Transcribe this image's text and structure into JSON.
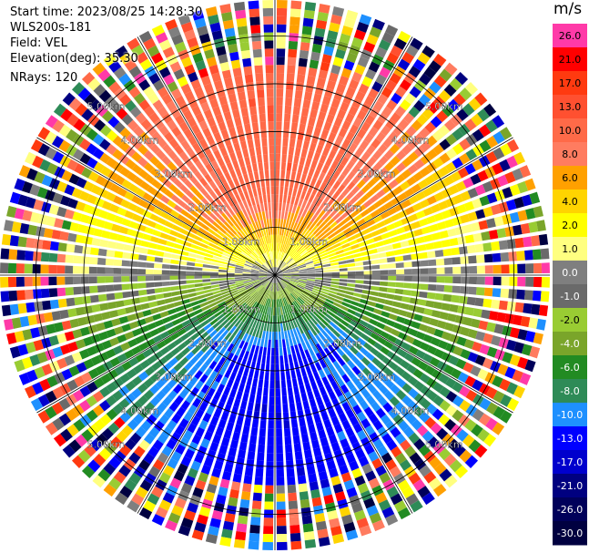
{
  "info": {
    "start_time": "Start time: 2023/08/25 14:28:30",
    "instrument": "WLS200s-181",
    "field": "Field: VEL",
    "elevation": "Elevation(deg): 35.30",
    "nrays": "NRays: 120"
  },
  "colorbar": {
    "unit": "m/s",
    "levels": [
      {
        "label": "26.0",
        "color": "#ff3aa8"
      },
      {
        "label": "21.0",
        "color": "#ff0000"
      },
      {
        "label": "17.0",
        "color": "#ff3a10"
      },
      {
        "label": "13.0",
        "color": "#ff5030"
      },
      {
        "label": "10.0",
        "color": "#ff6a48"
      },
      {
        "label": "8.0",
        "color": "#ff7c60"
      },
      {
        "label": "6.0",
        "color": "#ffa000"
      },
      {
        "label": "4.0",
        "color": "#ffd400"
      },
      {
        "label": "2.0",
        "color": "#ffff00"
      },
      {
        "label": "1.0",
        "color": "#ffff80"
      },
      {
        "label": "0.0",
        "color": "#7f7f7f"
      },
      {
        "label": "-1.0",
        "color": "#6a6a6a"
      },
      {
        "label": "-2.0",
        "color": "#99cc33"
      },
      {
        "label": "-4.0",
        "color": "#7aa52a"
      },
      {
        "label": "-6.0",
        "color": "#228b22"
      },
      {
        "label": "-8.0",
        "color": "#2e8b57"
      },
      {
        "label": "-10.0",
        "color": "#1e90ff"
      },
      {
        "label": "-13.0",
        "color": "#0000ff"
      },
      {
        "label": "-17.0",
        "color": "#0000cd"
      },
      {
        "label": "-21.0",
        "color": "#000080"
      },
      {
        "label": "-26.0",
        "color": "#00005a"
      },
      {
        "label": "-30.0",
        "color": "#000040"
      }
    ]
  },
  "chart_data": {
    "type": "heatmap",
    "subtype": "ppi-polar",
    "field": "VEL",
    "units": "m/s",
    "n_rays": 120,
    "elevation_deg": 35.3,
    "range_rings_km": [
      1,
      2,
      3,
      4,
      5
    ],
    "ring_labels": {
      "1.00km": [
        1.0
      ],
      "2.00km": [
        2.0
      ],
      "3.00km": [
        3.0
      ],
      "4.00km": [
        4.0
      ],
      "5.00km": [
        5.0
      ]
    },
    "ring_label_texts": [
      "1.00km",
      "2.00km",
      "3.00km",
      "4.00km",
      "5.00km"
    ],
    "max_range_km": 5.75,
    "spoke_angles_deg": [
      0,
      30,
      60,
      90,
      120,
      150,
      180,
      210,
      240,
      270,
      300,
      330
    ],
    "velocity_sectors": [
      {
        "direction": "north",
        "range_km": [
          0.4,
          4.2
        ],
        "velocity_ms": 10.0
      },
      {
        "direction": "east-west",
        "range_km": [
          0.0,
          1.5
        ],
        "velocity_ms": 0.0
      },
      {
        "direction": "south",
        "range_km": [
          0.4,
          4.2
        ],
        "velocity_ms": -10.0
      }
    ],
    "noise_beyond_km": 4.4
  }
}
